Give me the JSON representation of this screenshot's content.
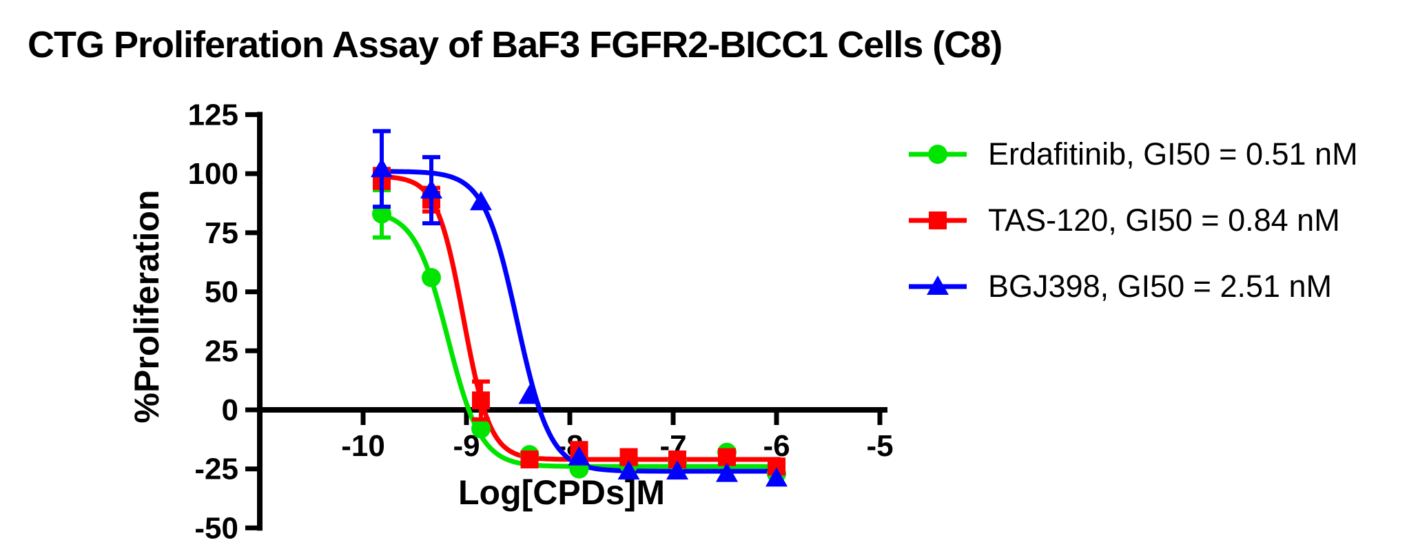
{
  "title": "CTG Proliferation Assay of BaF3 FGFR2-BICC1 Cells (C8)",
  "chart_data": {
    "type": "line",
    "title": "CTG Proliferation Assay of BaF3 FGFR2-BICC1 Cells (C8)",
    "xlabel": "Log[CPDs]M",
    "ylabel": "%Proliferation",
    "x_ticks": [
      -10,
      -9,
      -8,
      -7,
      -6,
      -5
    ],
    "y_ticks": [
      125,
      100,
      75,
      50,
      25,
      0,
      -25,
      -50
    ],
    "xlim": [
      -11,
      -4.8
    ],
    "ylim": [
      -50,
      125
    ],
    "grid": false,
    "legend_position": "right",
    "x": [
      -9.82,
      -9.34,
      -8.86,
      -8.39,
      -7.91,
      -7.43,
      -6.96,
      -6.48,
      -6.0
    ],
    "series": [
      {
        "name": "Erdafitinib",
        "legend_label": "Erdafitinib, GI50 = 0.51 nM",
        "gi50_nM": 0.51,
        "color": "#00e400",
        "marker": "circle",
        "values": [
          83,
          56,
          -8,
          -19,
          -25,
          -23,
          -22,
          -18,
          -27
        ],
        "errors": [
          10,
          0,
          0,
          0,
          0,
          0,
          0,
          0,
          0
        ],
        "fit_4pl": {
          "top": 84.5,
          "bottom": -24,
          "logIC50": -9.18,
          "hill": 2.7
        }
      },
      {
        "name": "TAS-120",
        "legend_label": "TAS-120, GI50 = 0.84 nM",
        "gi50_nM": 0.84,
        "color": "#ff0000",
        "marker": "square",
        "values": [
          98,
          89,
          4,
          -21,
          -17,
          -20,
          -21,
          -20,
          -24
        ],
        "errors": [
          4,
          5,
          8,
          0,
          0,
          0,
          0,
          0,
          0
        ],
        "fit_4pl": {
          "top": 99,
          "bottom": -21,
          "logIC50": -9.03,
          "hill": 3.36
        }
      },
      {
        "name": "BGJ398",
        "legend_label": "BGJ398, GI50 = 2.51 nM",
        "gi50_nM": 2.51,
        "color": "#0000ff",
        "marker": "triangle",
        "values": [
          102,
          93,
          88,
          6,
          -20,
          -26,
          -26,
          -27,
          -29
        ],
        "errors": [
          16,
          14,
          0,
          0,
          0,
          0,
          0,
          0,
          0
        ],
        "fit_4pl": {
          "top": 101,
          "bottom": -26,
          "logIC50": -8.51,
          "hill": 2.7
        }
      }
    ]
  }
}
